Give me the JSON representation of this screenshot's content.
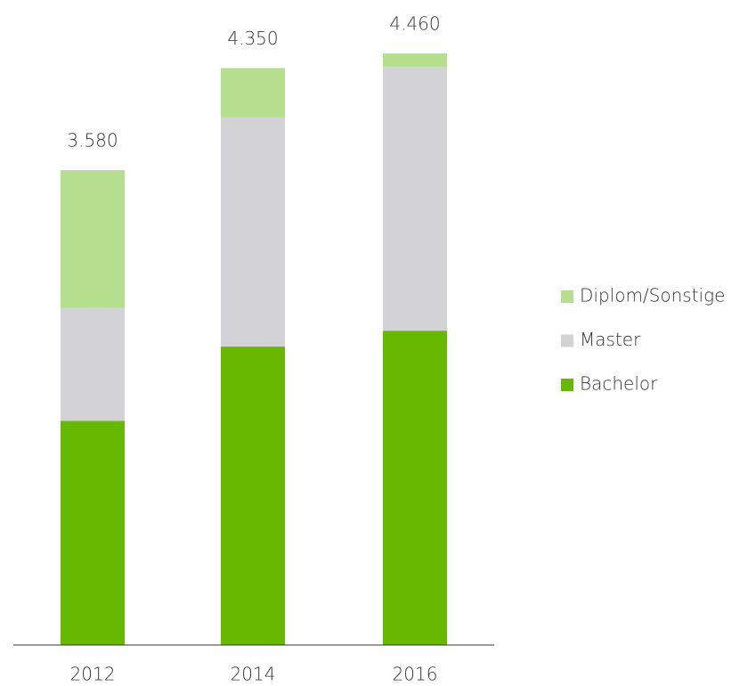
{
  "chart_data": {
    "type": "stacked-bar",
    "categories": [
      "2012",
      "2014",
      "2016"
    ],
    "series": [
      {
        "name": "Bachelor",
        "color": "#66b800",
        "values": [
          1690,
          2250,
          2370
        ]
      },
      {
        "name": "Master",
        "color": "#d3d3d5",
        "values": [
          850,
          1730,
          1990
        ]
      },
      {
        "name": "Diplom/Sonstige",
        "color": "#b5de8e",
        "values": [
          1040,
          370,
          100
        ]
      }
    ],
    "totals": {
      "values": [
        3580,
        4350,
        4460
      ],
      "value_labels": [
        "3.580",
        "4.350",
        "4.460"
      ]
    },
    "ylim": [
      0,
      4800
    ],
    "legend": "right"
  }
}
